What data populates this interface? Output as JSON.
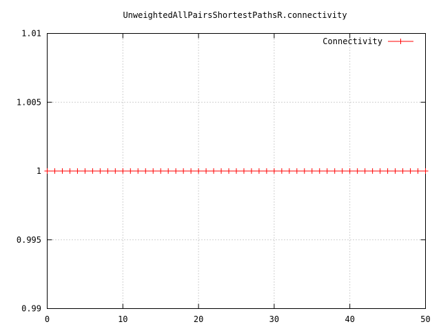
{
  "chart_data": {
    "type": "line",
    "title": "UnweightedAllPairsShortestPathsR.connectivity",
    "xlabel": "",
    "ylabel": "",
    "xlim": [
      0,
      50
    ],
    "ylim": [
      0.99,
      1.01
    ],
    "x_ticks": [
      "0",
      "10",
      "20",
      "30",
      "40",
      "50"
    ],
    "y_ticks": [
      "0.99",
      "0.995",
      "1",
      "1.005",
      "1.01"
    ],
    "grid": true,
    "legend_position": "top-right",
    "series": [
      {
        "name": "Connectivity",
        "color": "#ff0000",
        "marker": "plus",
        "x": [
          0,
          1,
          2,
          3,
          4,
          5,
          6,
          7,
          8,
          9,
          10,
          11,
          12,
          13,
          14,
          15,
          16,
          17,
          18,
          19,
          20,
          21,
          22,
          23,
          24,
          25,
          26,
          27,
          28,
          29,
          30,
          31,
          32,
          33,
          34,
          35,
          36,
          37,
          38,
          39,
          40,
          41,
          42,
          43,
          44,
          45,
          46,
          47,
          48,
          49,
          50
        ],
        "y": [
          1,
          1,
          1,
          1,
          1,
          1,
          1,
          1,
          1,
          1,
          1,
          1,
          1,
          1,
          1,
          1,
          1,
          1,
          1,
          1,
          1,
          1,
          1,
          1,
          1,
          1,
          1,
          1,
          1,
          1,
          1,
          1,
          1,
          1,
          1,
          1,
          1,
          1,
          1,
          1,
          1,
          1,
          1,
          1,
          1,
          1,
          1,
          1,
          1,
          1,
          1
        ]
      }
    ]
  }
}
